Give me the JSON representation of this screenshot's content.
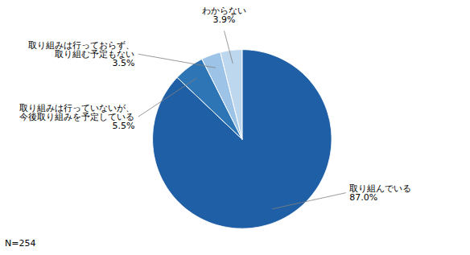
{
  "chart_data": {
    "type": "pie",
    "categories": [
      "取り組んでいる",
      "取り組みは行っていないが、\n今後取り組みを予定している",
      "取り組みは行っておらず、\n取り組む予定もない",
      "わからない"
    ],
    "values": [
      87.0,
      5.5,
      3.5,
      3.9
    ],
    "value_labels": [
      "87.0%",
      "5.5%",
      "3.5%",
      "3.9%"
    ],
    "colors": [
      "#1f5fa6",
      "#2e75b6",
      "#9dc3e6",
      "#bdd7ee"
    ],
    "data_labels": true,
    "annotations": [
      "N=254"
    ]
  }
}
